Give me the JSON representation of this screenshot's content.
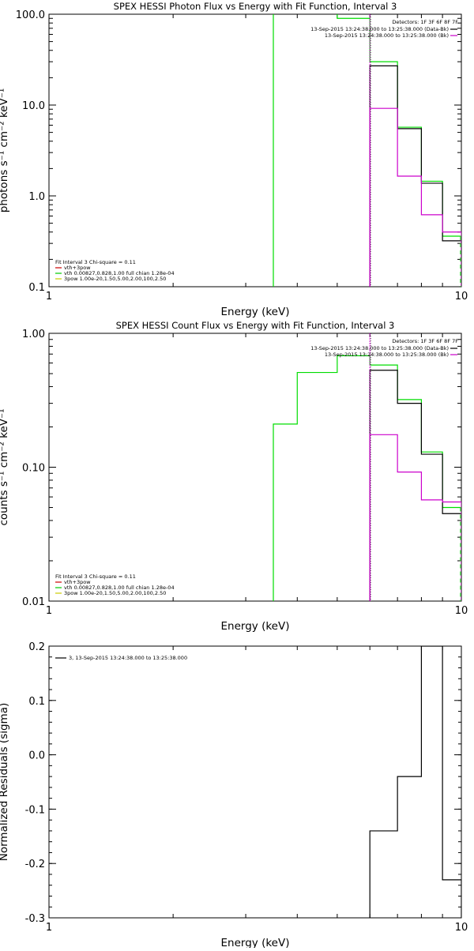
{
  "chart_data": [
    {
      "type": "line",
      "title": "SPEX HESSI Photon Flux vs Energy with Fit Function, Interval 3",
      "xlabel": "Energy (keV)",
      "ylabel": "photons s⁻¹ cm⁻² keV⁻¹",
      "xscale": "log",
      "yscale": "log",
      "xlim": [
        1,
        10
      ],
      "ylim": [
        0.1,
        100
      ],
      "xticks": [
        {
          "v": 1,
          "label": "1"
        },
        {
          "v": 10,
          "label": "10"
        }
      ],
      "yticks": [
        {
          "v": 0.1,
          "label": "0.1"
        },
        {
          "v": 1,
          "label": "1.0"
        },
        {
          "v": 10,
          "label": "10.0"
        },
        {
          "v": 100,
          "label": "100.0"
        }
      ],
      "marker_x": 6,
      "top_legend": {
        "header": "Detectors: 1F 3F 6F 8F 7F",
        "entries": [
          {
            "text": "13-Sep-2015 13:24:38.000 to 13:25:38.000 (Data-Bk)",
            "color": "#000000"
          },
          {
            "text": "13-Sep-2015 13:24:38.000 to 13:25:38.000 (Bk)",
            "color": "#cc00cc"
          }
        ]
      },
      "fit_legend": {
        "header": "Fit Interval 3   Chi-square = 0.11",
        "entries": [
          {
            "text": "vth+3pow",
            "color": "#cc0000"
          },
          {
            "text": "vth 0.00827,0.828,1.00  full chian 1.28e-04",
            "color": "#00cc00"
          },
          {
            "text": "3pow 1.00e-20,1.50,5.00,2.00,100,2.50",
            "color": "#cccc00"
          }
        ]
      },
      "series": [
        {
          "color": "#00dd00",
          "type": "step",
          "bins": [
            [
              3.5,
              5.0,
              150
            ],
            [
              5.0,
              6.0,
              90
            ],
            [
              6.0,
              7.0,
              30
            ],
            [
              7.0,
              8.0,
              5.7
            ],
            [
              8.0,
              9.0,
              1.45
            ],
            [
              9.0,
              10.0,
              0.36
            ]
          ]
        },
        {
          "color": "#000000",
          "type": "step",
          "bins": [
            [
              6.0,
              7.0,
              27
            ],
            [
              7.0,
              8.0,
              5.5
            ],
            [
              8.0,
              9.0,
              1.38
            ],
            [
              9.0,
              10.0,
              0.32
            ]
          ]
        },
        {
          "color": "#cc00cc",
          "type": "step",
          "bins": [
            [
              6.0,
              7.0,
              9.2
            ],
            [
              7.0,
              8.0,
              1.65
            ],
            [
              8.0,
              9.0,
              0.62
            ],
            [
              9.0,
              10.0,
              0.4
            ]
          ]
        }
      ]
    },
    {
      "type": "line",
      "title": "SPEX HESSI Count Flux vs Energy with Fit Function, Interval 3",
      "xlabel": "Energy (keV)",
      "ylabel": "counts s⁻¹ cm⁻² keV⁻¹",
      "xscale": "log",
      "yscale": "log",
      "xlim": [
        1,
        10
      ],
      "ylim": [
        0.01,
        1
      ],
      "xticks": [
        {
          "v": 1,
          "label": "1"
        },
        {
          "v": 10,
          "label": "10"
        }
      ],
      "yticks": [
        {
          "v": 0.01,
          "label": "0.01"
        },
        {
          "v": 0.1,
          "label": "0.10"
        },
        {
          "v": 1,
          "label": "1.00"
        }
      ],
      "marker_x": 6,
      "top_legend": {
        "header": "Detectors: 1F 3F 6F 8F 7F",
        "entries": [
          {
            "text": "13-Sep-2015 13:24:38.000 to 13:25:38.000 (Data-Bk)",
            "color": "#000000"
          },
          {
            "text": "13-Sep-2015 13:24:38.000 to 13:25:38.000 (Bk)",
            "color": "#cc00cc"
          }
        ]
      },
      "fit_legend": {
        "header": "Fit Interval 3   Chi-square = 0.11",
        "entries": [
          {
            "text": "vth+3pow",
            "color": "#cc0000"
          },
          {
            "text": "vth 0.00827,0.828,1.00  full chian 1.28e-04",
            "color": "#00cc00"
          },
          {
            "text": "3pow 1.00e-20,1.50,5.00,2.00,100,2.50",
            "color": "#cccc00"
          }
        ]
      },
      "series": [
        {
          "color": "#00dd00",
          "type": "step",
          "bins": [
            [
              3.5,
              4.0,
              0.21
            ],
            [
              4.0,
              5.0,
              0.51
            ],
            [
              5.0,
              6.0,
              0.68
            ],
            [
              6.0,
              7.0,
              0.58
            ],
            [
              7.0,
              8.0,
              0.32
            ],
            [
              8.0,
              9.0,
              0.13
            ],
            [
              9.0,
              10.0,
              0.05
            ]
          ]
        },
        {
          "color": "#000000",
          "type": "step",
          "bins": [
            [
              6.0,
              7.0,
              0.53
            ],
            [
              7.0,
              8.0,
              0.3
            ],
            [
              8.0,
              9.0,
              0.125
            ],
            [
              9.0,
              10.0,
              0.045
            ]
          ]
        },
        {
          "color": "#cc00cc",
          "type": "step",
          "bins": [
            [
              6.0,
              7.0,
              0.175
            ],
            [
              7.0,
              8.0,
              0.092
            ],
            [
              8.0,
              9.0,
              0.057
            ],
            [
              9.0,
              10.0,
              0.055
            ]
          ]
        }
      ]
    },
    {
      "type": "line",
      "title": "",
      "xlabel": "Energy (keV)",
      "ylabel": "Normalized Residuals (sigma)",
      "xscale": "log",
      "yscale": "linear",
      "xlim": [
        1,
        10
      ],
      "ylim": [
        -0.3,
        0.2
      ],
      "xticks": [
        {
          "v": 1,
          "label": "1"
        },
        {
          "v": 10,
          "label": "10"
        }
      ],
      "yticks": [
        {
          "v": -0.3,
          "label": "-0.3"
        },
        {
          "v": -0.2,
          "label": "-0.2"
        },
        {
          "v": -0.1,
          "label": "-0.1"
        },
        {
          "v": 0,
          "label": "0.0"
        },
        {
          "v": 0.1,
          "label": "0.1"
        },
        {
          "v": 0.2,
          "label": "0.2"
        }
      ],
      "top_legend": {
        "header": "",
        "entries": [
          {
            "text": "3, 13-Sep-2015 13:24:38.000 to 13:25:38.000",
            "color": "#000000"
          }
        ]
      },
      "series": [
        {
          "color": "#000000",
          "type": "step",
          "bins": [
            [
              6.0,
              7.0,
              -0.14
            ],
            [
              7.0,
              8.0,
              -0.04
            ],
            [
              8.0,
              9.0,
              0.2
            ],
            [
              9.0,
              10.0,
              -0.23
            ]
          ]
        }
      ]
    }
  ]
}
